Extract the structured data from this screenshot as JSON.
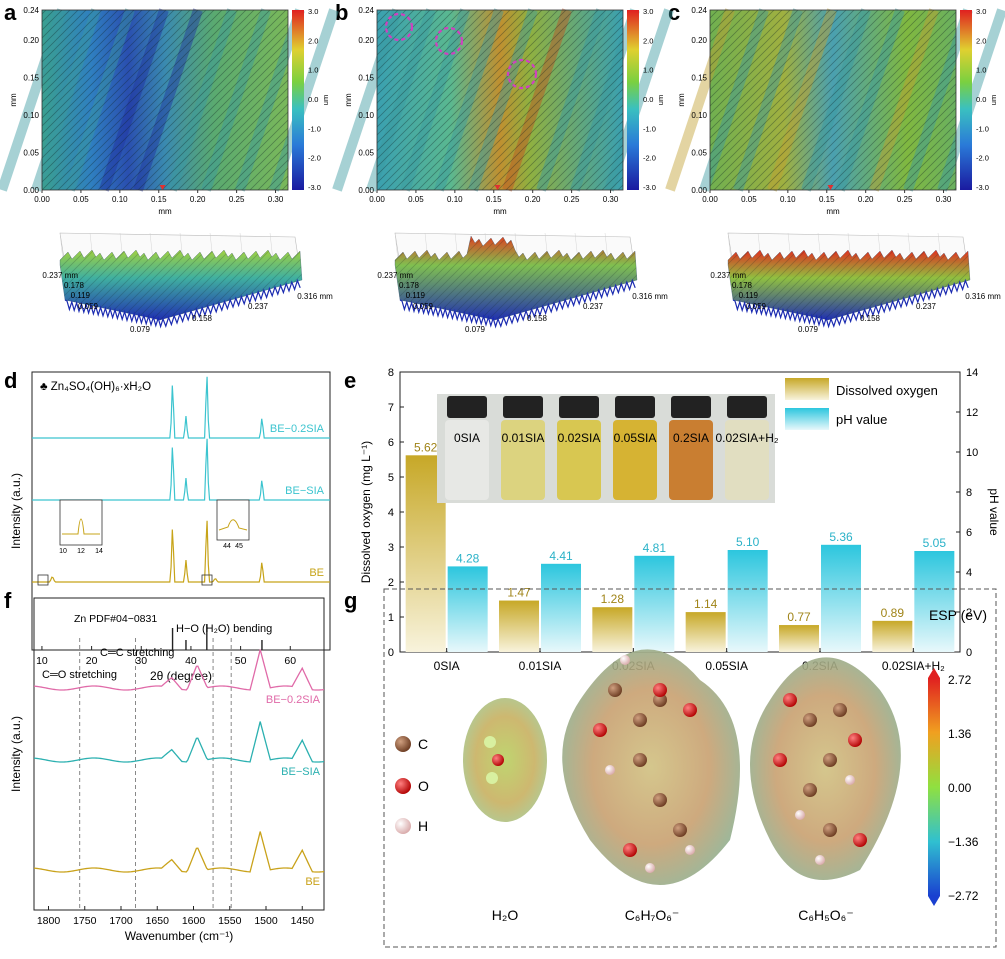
{
  "panels": {
    "a": "a",
    "b": "b",
    "c": "c",
    "d": "d",
    "e": "e",
    "f": "f",
    "g": "g"
  },
  "maps": {
    "x_label": "mm",
    "y_label": "mm",
    "cbar_unit": "um",
    "x_ticks": [
      "0.00",
      "0.05",
      "0.10",
      "0.15",
      "0.20",
      "0.25",
      "0.30"
    ],
    "y_ticks": [
      "0.00",
      "0.05",
      "0.10",
      "0.15",
      "0.20",
      "0.24"
    ],
    "cbar_ticks": [
      "3.0",
      "2.0",
      "1.0",
      "0.0",
      "-1.0",
      "-2.0",
      "-3.0"
    ]
  },
  "surface3d": {
    "y_ticks": [
      "0.237 mm",
      "0.178",
      "0.119",
      "0.059"
    ],
    "x_ticks": [
      "0.079",
      "0.158",
      "0.237",
      "0.316 mm"
    ]
  },
  "xrd": {
    "legend": "♣ Zn₄SO₄(OH)₆·xH₂O",
    "ylabel": "Intensity (a.u.)",
    "xlabel": "2θ (degree)",
    "x_ticks": [
      "10",
      "20",
      "30",
      "40",
      "50",
      "60"
    ],
    "traces": [
      {
        "label": "BE−0.2SIA",
        "color": "#3cc4cf"
      },
      {
        "label": "BE−SIA",
        "color": "#3cc4cf"
      },
      {
        "label": "BE",
        "color": "#c7a419"
      }
    ],
    "ref_label": "Zn  PDF#04−0831",
    "inset_left_ticks": [
      "10",
      "12",
      "14"
    ],
    "inset_right_ticks": [
      "44",
      "45"
    ]
  },
  "chart_data": [
    {
      "type": "bar",
      "categories": [
        "0SIA",
        "0.01SIA",
        "0.02SIA",
        "0.05SIA",
        "0.2SIA",
        "0.02SIA+H₂"
      ],
      "series": [
        {
          "name": "Dissolved oxygen",
          "values": [
            5.62,
            1.47,
            1.28,
            1.14,
            0.77,
            0.89
          ],
          "color": "#c7a827"
        },
        {
          "name": "pH value",
          "values": [
            4.28,
            4.41,
            4.81,
            5.1,
            5.36,
            5.05
          ],
          "color": "#37c6dc"
        }
      ],
      "ylabel": "Dissolved oxygen (mg L⁻¹)",
      "y2label": "pH value",
      "ylim": [
        0,
        8
      ],
      "y2lim": [
        0,
        14
      ],
      "y_ticks": [
        "0",
        "1",
        "2",
        "3",
        "4",
        "5",
        "6",
        "7",
        "8"
      ],
      "y2_ticks": [
        "0",
        "2",
        "4",
        "6",
        "8",
        "10",
        "12",
        "14"
      ],
      "data_labels_left": [
        "5.62",
        "1.47",
        "1.28",
        "1.14",
        "0.77",
        "0.89"
      ],
      "data_labels_right": [
        "4.28",
        "4.41",
        "4.81",
        "5.10",
        "5.36",
        "5.05"
      ],
      "inset_labels": [
        "0SIA",
        "0.01SIA",
        "0.02SIA",
        "0.05SIA",
        "0.2SIA",
        "0.02SIA+H₂"
      ],
      "legend_position": "top-right"
    }
  ],
  "ftir": {
    "ylabel": "Intensity (a.u.)",
    "xlabel": "Wavenumber (cm⁻¹)",
    "x_ticks": [
      "1800",
      "1750",
      "1700",
      "1650",
      "1600",
      "1550",
      "1500",
      "1450"
    ],
    "annotations": [
      "C═O stretching",
      "C═C stretching",
      "H−O (H₂O) bending"
    ],
    "traces": [
      {
        "label": "BE−0.2SIA",
        "color": "#e06aa8"
      },
      {
        "label": "BE−SIA",
        "color": "#2bb0b0"
      },
      {
        "label": "BE",
        "color": "#c9a21a"
      }
    ]
  },
  "esp": {
    "title": "ESP (eV)",
    "ticks": [
      "2.72",
      "1.36",
      "0.00",
      "−1.36",
      "−2.72"
    ],
    "atoms": [
      {
        "label": "C",
        "color": "#8b5a3c"
      },
      {
        "label": "O",
        "color": "#e02020"
      },
      {
        "label": "H",
        "color": "#f0c8c8"
      }
    ],
    "molecules": [
      "H₂O",
      "C₆H₇O₆⁻",
      "C₆H₅O₆⁻"
    ]
  }
}
